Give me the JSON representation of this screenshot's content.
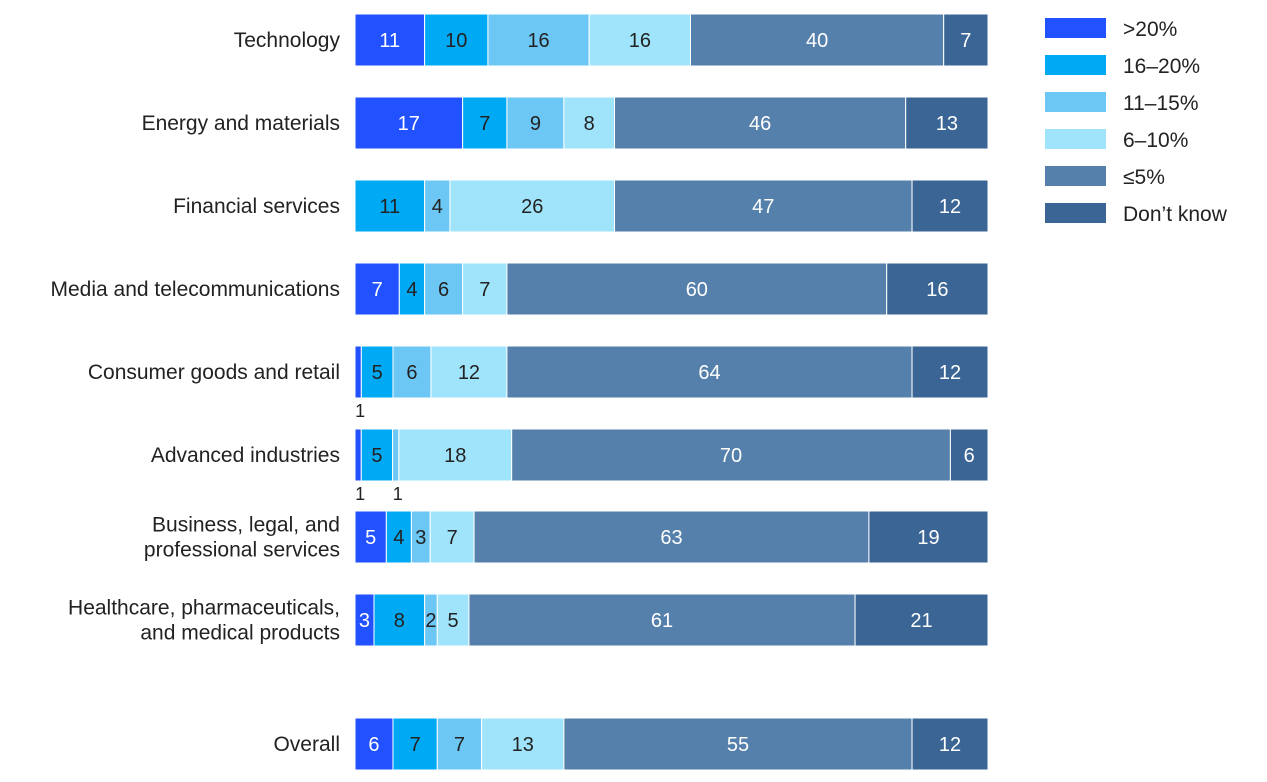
{
  "chart_data": {
    "type": "bar",
    "orientation": "horizontal",
    "stacked": true,
    "value_unit": "percent",
    "legend_position": "right",
    "grid": false,
    "title": "",
    "xlabel": "",
    "ylabel": "",
    "xlim": [
      0,
      100
    ],
    "categories": [
      [
        "Technology"
      ],
      [
        "Energy and materials"
      ],
      [
        "Financial services"
      ],
      [
        "Media and telecommunications"
      ],
      [
        "Consumer goods and retail"
      ],
      [
        "Advanced industries"
      ],
      [
        "Business, legal, and",
        "professional services"
      ],
      [
        "Healthcare, pharmaceuticals,",
        "and medical products"
      ],
      [
        "Overall"
      ]
    ],
    "series": [
      {
        "name": ">20%",
        "color": "#2251ff",
        "text_color": "#ffffff",
        "values": [
          11,
          17,
          0,
          7,
          1,
          1,
          5,
          3,
          6
        ]
      },
      {
        "name": "16–20%",
        "color": "#00a9f4",
        "text_color": "#222222",
        "values": [
          10,
          7,
          11,
          4,
          5,
          5,
          4,
          8,
          7
        ]
      },
      {
        "name": "11–15%",
        "color": "#6cc7f5",
        "text_color": "#222222",
        "values": [
          16,
          9,
          4,
          6,
          6,
          1,
          3,
          2,
          7
        ]
      },
      {
        "name": "6–10%",
        "color": "#a0e4fb",
        "text_color": "#222222",
        "values": [
          16,
          8,
          26,
          7,
          12,
          18,
          7,
          5,
          13
        ]
      },
      {
        "name": "≤5%",
        "color": "#5580ab",
        "text_color": "#ffffff",
        "values": [
          40,
          46,
          47,
          60,
          64,
          70,
          63,
          61,
          55
        ]
      },
      {
        "name": "Don’t know",
        "color": "#3a6594",
        "text_color": "#ffffff",
        "values": [
          7,
          13,
          12,
          16,
          12,
          6,
          19,
          21,
          12
        ]
      }
    ],
    "outside_labels": [
      {
        "category_index": 4,
        "series_index": 0,
        "text": "1"
      },
      {
        "category_index": 5,
        "series_index": 0,
        "text": "1"
      },
      {
        "category_index": 5,
        "series_index": 2,
        "text": "1"
      }
    ]
  }
}
